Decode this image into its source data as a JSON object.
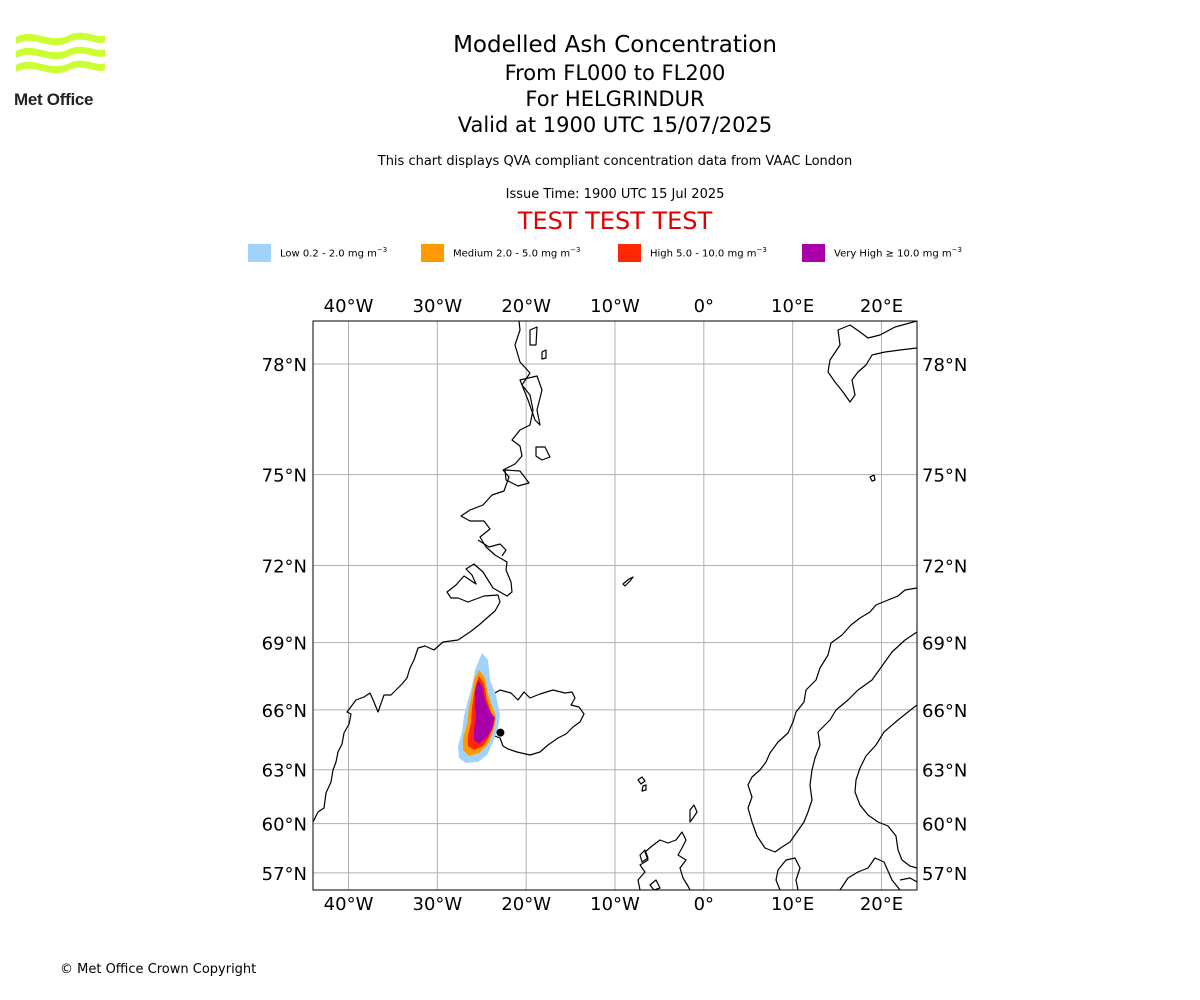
{
  "logo": {
    "text": "Met Office",
    "colors": {
      "waves": "#ccff33"
    }
  },
  "header": {
    "title": "Modelled Ash Concentration",
    "levels": "From FL000 to FL200",
    "volcano": "For HELGRINDUR",
    "valid": "Valid at 1900 UTC 15/07/2025",
    "note": "This chart displays QVA compliant concentration data from VAAC London",
    "issue_time": "Issue Time: 1900 UTC 15 Jul 2025",
    "test_banner": "TEST TEST TEST"
  },
  "legend": {
    "items": [
      {
        "label": "Low 0.2 - 2.0 mg m",
        "color": "#a0d2fa"
      },
      {
        "label": "Medium 2.0 - 5.0 mg m",
        "color": "#ff9a00"
      },
      {
        "label": "High 5.0 - 10.0 mg m",
        "color": "#ff2800"
      },
      {
        "label": "Very High ≥ 10.0 mg m",
        "color": "#aa00aa"
      }
    ],
    "unit_exponent": "−3"
  },
  "map": {
    "lon_range": [
      -44,
      24
    ],
    "lat_range": [
      55.9,
      79
    ],
    "lon_ticks": [
      "40°W",
      "30°W",
      "20°W",
      "10°W",
      "0°",
      "10°E",
      "20°E"
    ],
    "lat_ticks": [
      "78°N",
      "75°N",
      "72°N",
      "69°N",
      "66°N",
      "63°N",
      "60°N",
      "57°N"
    ],
    "lon_tick_values": [
      -40,
      -30,
      -20,
      -10,
      0,
      10,
      20
    ],
    "lat_tick_values": [
      78,
      75,
      72,
      69,
      66,
      63,
      60,
      57
    ],
    "volcano_marker": [
      -22.9,
      64.9
    ]
  },
  "footer": {
    "copyright": "© Met Office Crown Copyright"
  }
}
